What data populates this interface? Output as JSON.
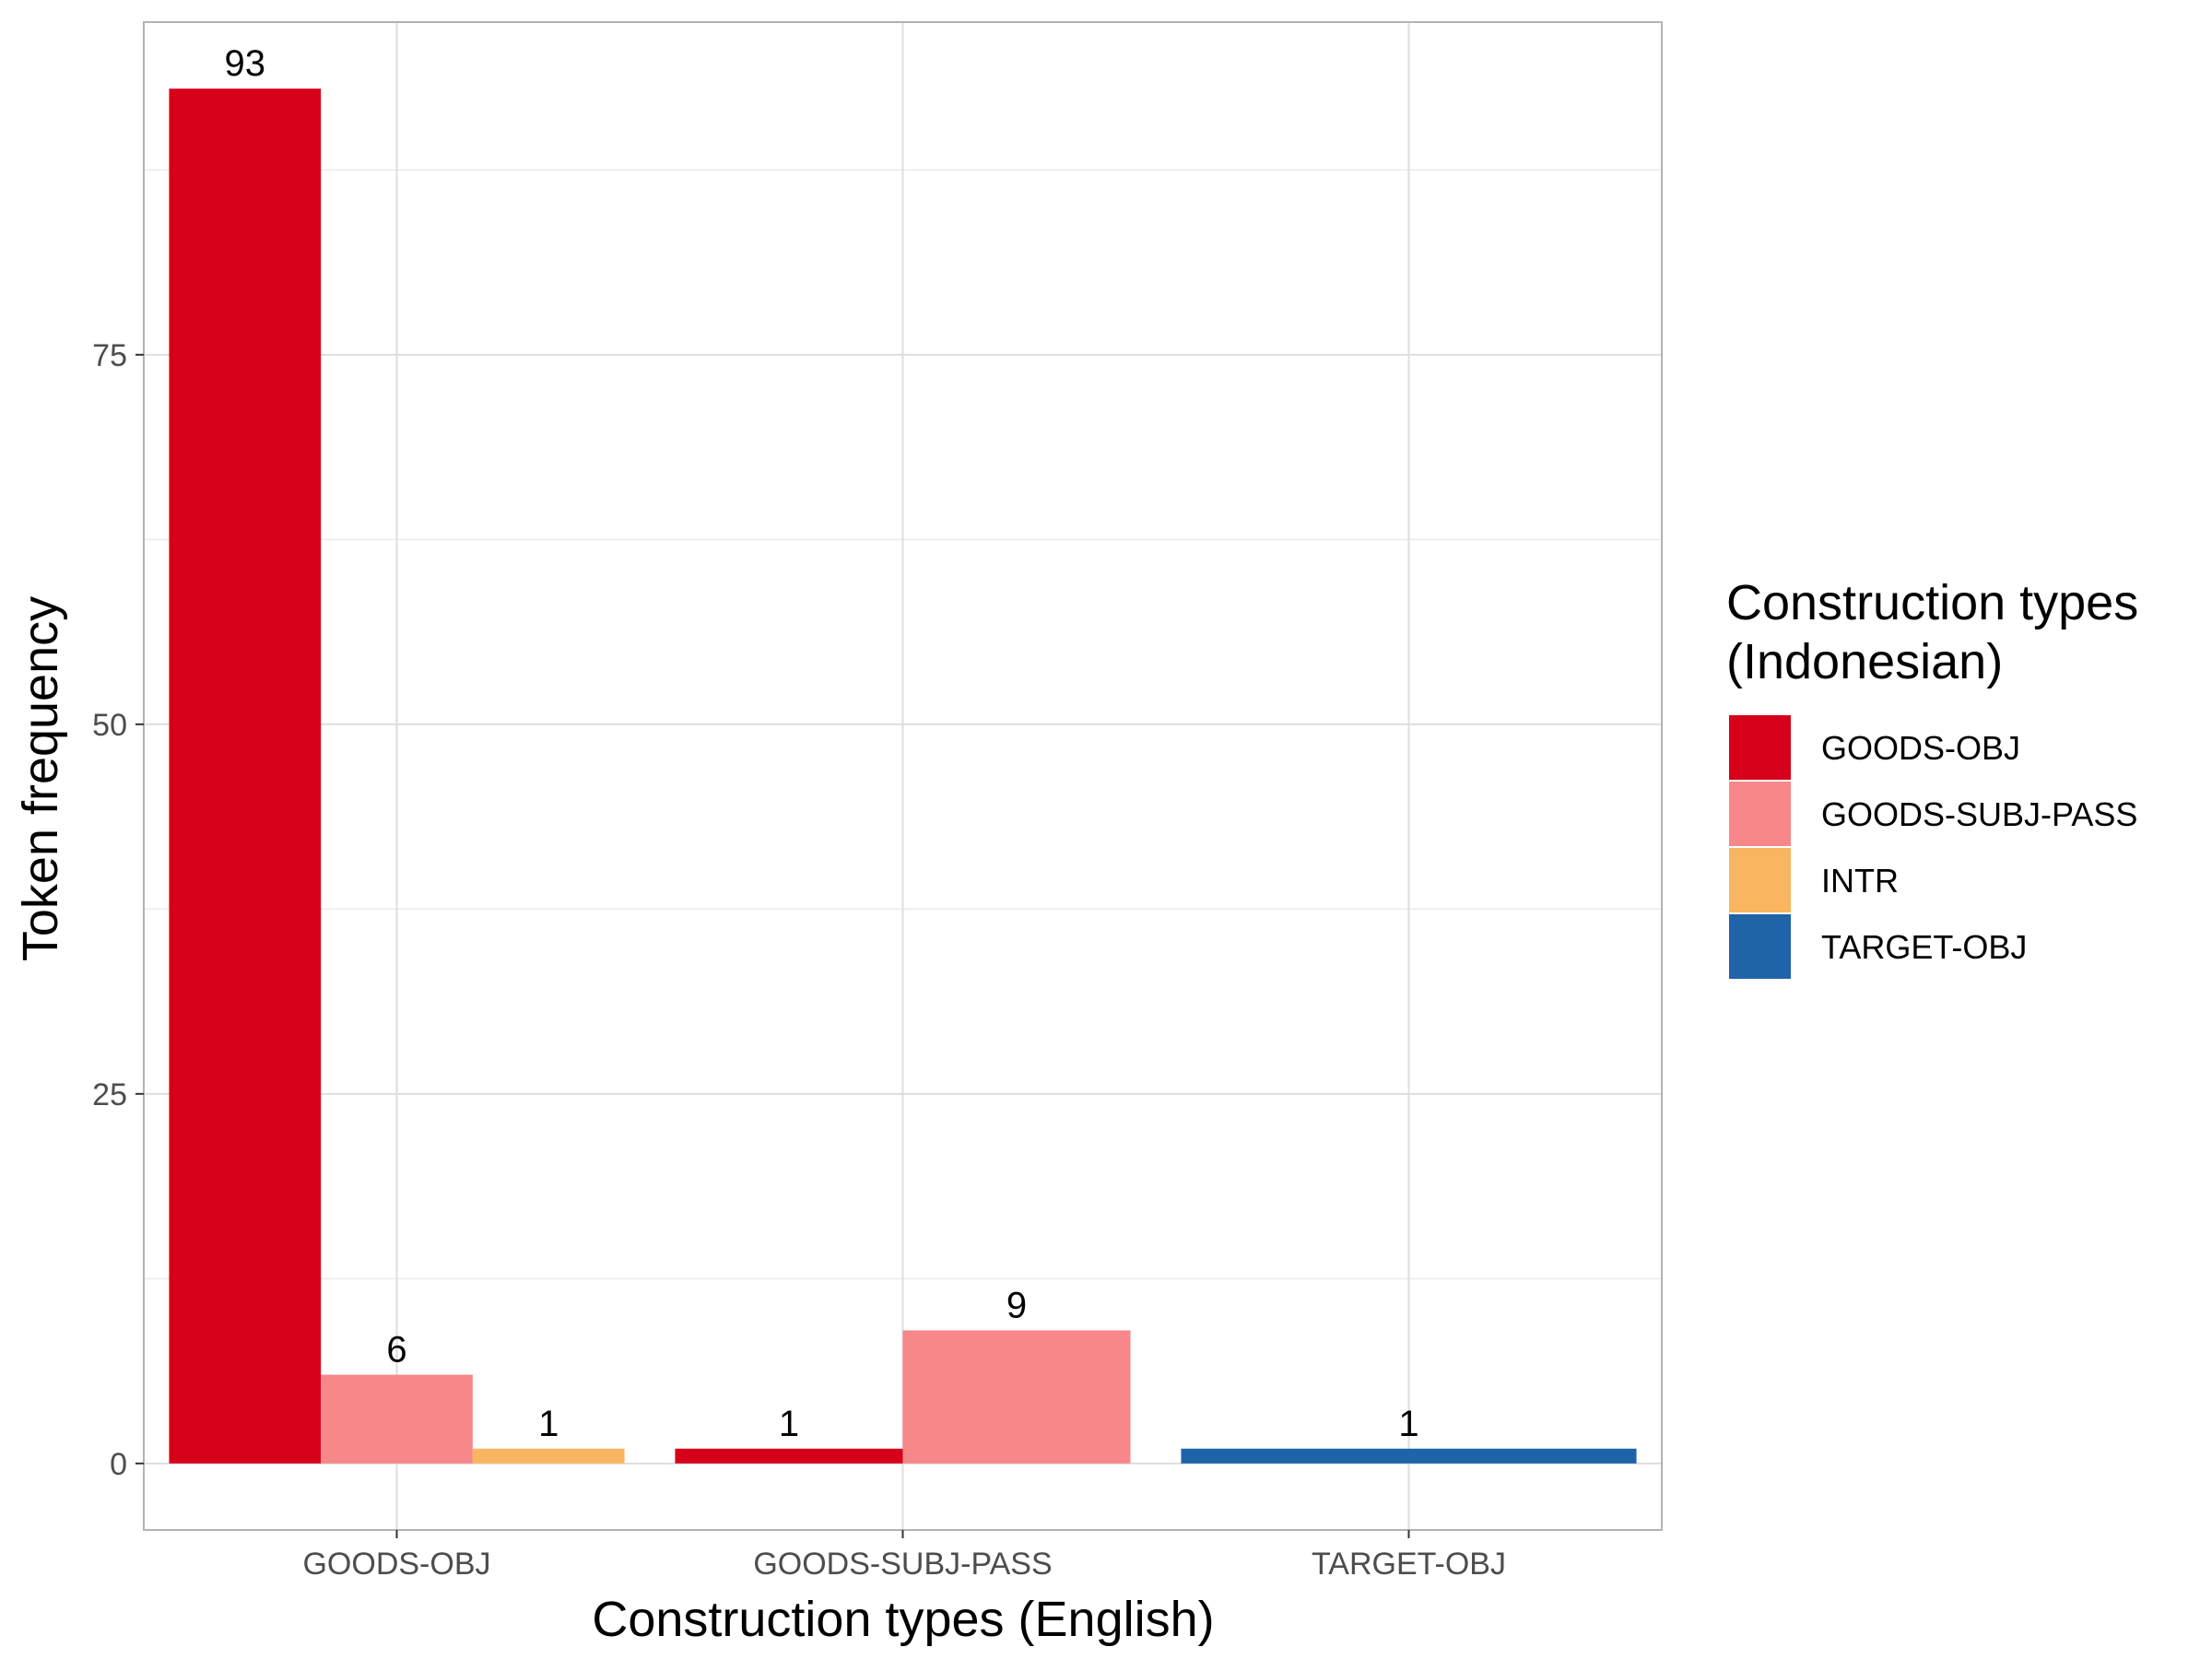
{
  "chart_data": {
    "type": "bar",
    "title": "",
    "xlabel": "Construction types (English)",
    "ylabel": "Token frequency",
    "categories": [
      "GOODS-OBJ",
      "GOODS-SUBJ-PASS",
      "TARGET-OBJ"
    ],
    "ylim": [
      -4.5,
      97.5
    ],
    "yticks": [
      0,
      25,
      50,
      75
    ],
    "grid": true,
    "legend": {
      "title_lines": [
        "Construction types",
        "(Indonesian)"
      ],
      "position": "right",
      "entries": [
        {
          "name": "GOODS-OBJ",
          "color": "#d7001a"
        },
        {
          "name": "GOODS-SUBJ-PASS",
          "color": "#f78789"
        },
        {
          "name": "INTR",
          "color": "#fab561"
        },
        {
          "name": "TARGET-OBJ",
          "color": "#1f63a8"
        }
      ]
    },
    "groups": [
      {
        "category": "GOODS-OBJ",
        "bars": [
          {
            "series": "GOODS-OBJ",
            "value": 93,
            "label": "93"
          },
          {
            "series": "GOODS-SUBJ-PASS",
            "value": 6,
            "label": "6"
          },
          {
            "series": "INTR",
            "value": 1,
            "label": "1"
          }
        ]
      },
      {
        "category": "GOODS-SUBJ-PASS",
        "bars": [
          {
            "series": "GOODS-OBJ",
            "value": 1,
            "label": "1"
          },
          {
            "series": "GOODS-SUBJ-PASS",
            "value": 9,
            "label": "9"
          }
        ]
      },
      {
        "category": "TARGET-OBJ",
        "bars": [
          {
            "series": "TARGET-OBJ",
            "value": 1,
            "label": "1"
          }
        ]
      }
    ]
  }
}
